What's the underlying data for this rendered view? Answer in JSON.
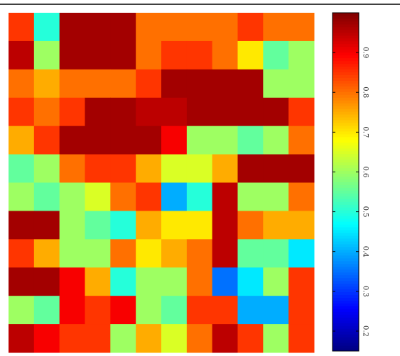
{
  "chart_data": {
    "type": "heatmap",
    "colormap": "jet",
    "z": [
      [
        0.85,
        0.5,
        0.97,
        0.97,
        0.97,
        0.8,
        0.8,
        0.8,
        0.8,
        0.85,
        0.8,
        0.8
      ],
      [
        0.95,
        0.6,
        0.97,
        0.97,
        0.97,
        0.8,
        0.85,
        0.85,
        0.8,
        0.7,
        0.55,
        0.6
      ],
      [
        0.8,
        0.75,
        0.8,
        0.8,
        0.8,
        0.85,
        0.97,
        0.97,
        0.97,
        0.97,
        0.6,
        0.6
      ],
      [
        0.85,
        0.8,
        0.85,
        0.97,
        0.97,
        0.95,
        0.95,
        0.97,
        0.97,
        0.97,
        0.97,
        0.85
      ],
      [
        0.75,
        0.85,
        0.97,
        0.97,
        0.97,
        0.97,
        0.9,
        0.6,
        0.6,
        0.55,
        0.6,
        0.8
      ],
      [
        0.55,
        0.6,
        0.8,
        0.85,
        0.85,
        0.75,
        0.65,
        0.65,
        0.75,
        0.97,
        0.97,
        0.97
      ],
      [
        0.6,
        0.55,
        0.6,
        0.65,
        0.8,
        0.85,
        0.4,
        0.5,
        0.95,
        0.6,
        0.6,
        0.8
      ],
      [
        0.97,
        0.97,
        0.6,
        0.55,
        0.5,
        0.75,
        0.7,
        0.7,
        0.95,
        0.8,
        0.75,
        0.75
      ],
      [
        0.85,
        0.75,
        0.6,
        0.6,
        0.8,
        0.7,
        0.75,
        0.8,
        0.95,
        0.55,
        0.55,
        0.45
      ],
      [
        0.97,
        0.97,
        0.9,
        0.75,
        0.5,
        0.6,
        0.6,
        0.8,
        0.35,
        0.45,
        0.6,
        0.85
      ],
      [
        0.6,
        0.55,
        0.9,
        0.85,
        0.9,
        0.6,
        0.55,
        0.85,
        0.85,
        0.4,
        0.4,
        0.85
      ],
      [
        0.95,
        0.9,
        0.85,
        0.85,
        0.6,
        0.75,
        0.65,
        0.8,
        0.95,
        0.85,
        0.6,
        0.85
      ]
    ],
    "zlim": [
      0.15,
      1.0
    ],
    "zticks": [
      0.2,
      0.3,
      0.4,
      0.5,
      0.6,
      0.7,
      0.8,
      0.9
    ]
  }
}
